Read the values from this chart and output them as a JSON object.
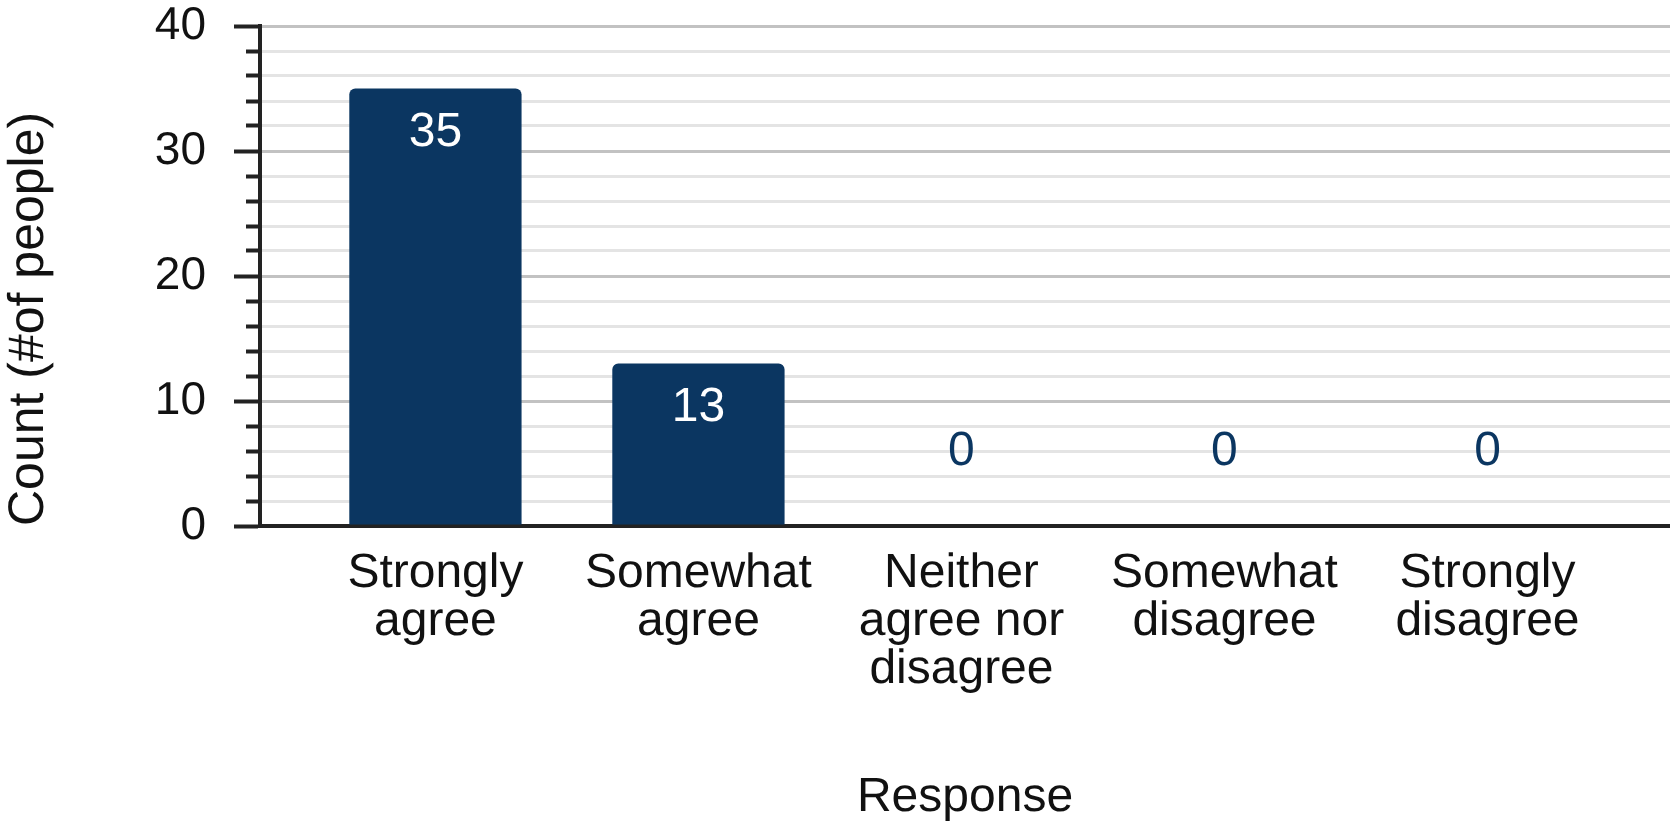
{
  "chart_data": {
    "type": "bar",
    "categories": [
      "Strongly agree",
      "Somewhat agree",
      "Neither agree nor disagree",
      "Somewhat disagree",
      "Strongly disagree"
    ],
    "values": [
      35,
      13,
      0,
      0,
      0
    ],
    "color": "#0b3661",
    "xlabel": "Response",
    "ylabel": "Count (#of people)",
    "ylim": [
      0,
      40
    ],
    "yticks": [
      0,
      {
        "value": 2,
        "label": null
      },
      {
        "value": 4,
        "label": null
      },
      {
        "value": 6,
        "label": null
      },
      {
        "value": 8,
        "label": null
      },
      10,
      {
        "value": 12,
        "label": null
      },
      {
        "value": 14,
        "label": null
      },
      {
        "value": 16,
        "label": null
      },
      {
        "value": 18,
        "label": null
      },
      20,
      {
        "value": 22,
        "label": null
      },
      {
        "value": 24,
        "label": null
      },
      {
        "value": 26,
        "label": null
      },
      {
        "value": 28,
        "label": null
      },
      30,
      {
        "value": 32,
        "label": null
      },
      {
        "value": 34,
        "label": null
      },
      {
        "value": 36,
        "label": null
      },
      {
        "value": 38,
        "label": null
      },
      40
    ],
    "grid": "y",
    "data_labels": true
  }
}
